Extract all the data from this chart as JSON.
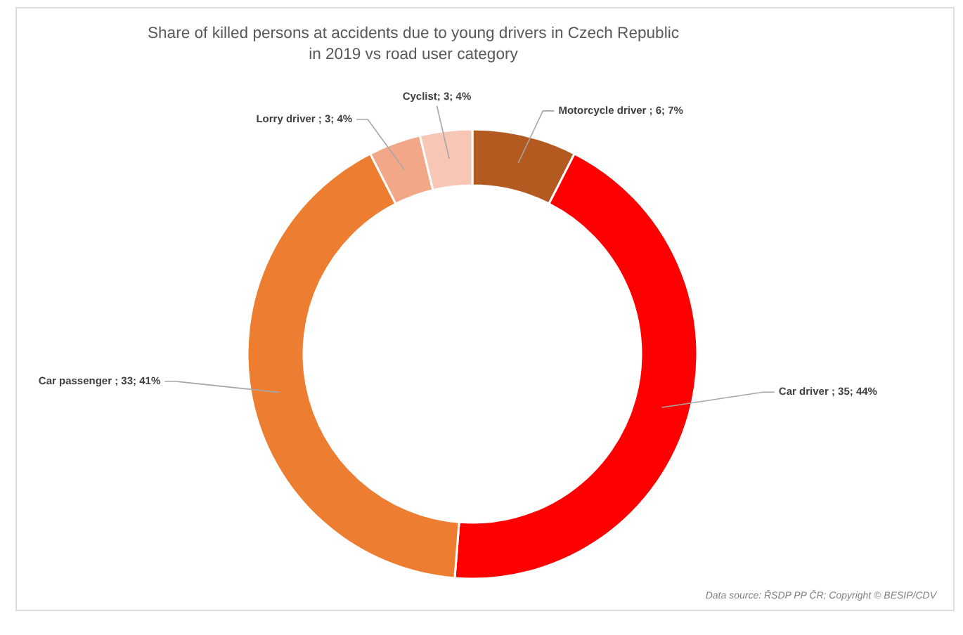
{
  "chart_data": {
    "type": "donut",
    "title": "Share of killed persons at accidents due to young drivers in Czech Republic in 2019 vs road user category",
    "categories": [
      "Motorcycle driver",
      "Car driver",
      "Car passenger",
      "Lorry driver",
      "Cyclist"
    ],
    "values": [
      6,
      35,
      33,
      3,
      3
    ],
    "colors": [
      "#b35a21",
      "#ff0000",
      "#ed7d31",
      "#f2a888",
      "#f7c6b5"
    ],
    "value_labels": [
      " ; 6; 7%",
      " ; 35; 44%",
      " ; 33; 41%",
      " ; 3; 4%",
      "; 3; 4%"
    ],
    "annotations": [
      "Data source: ŘSDP PP ČR; Copyright © BESIP/CDV"
    ]
  }
}
